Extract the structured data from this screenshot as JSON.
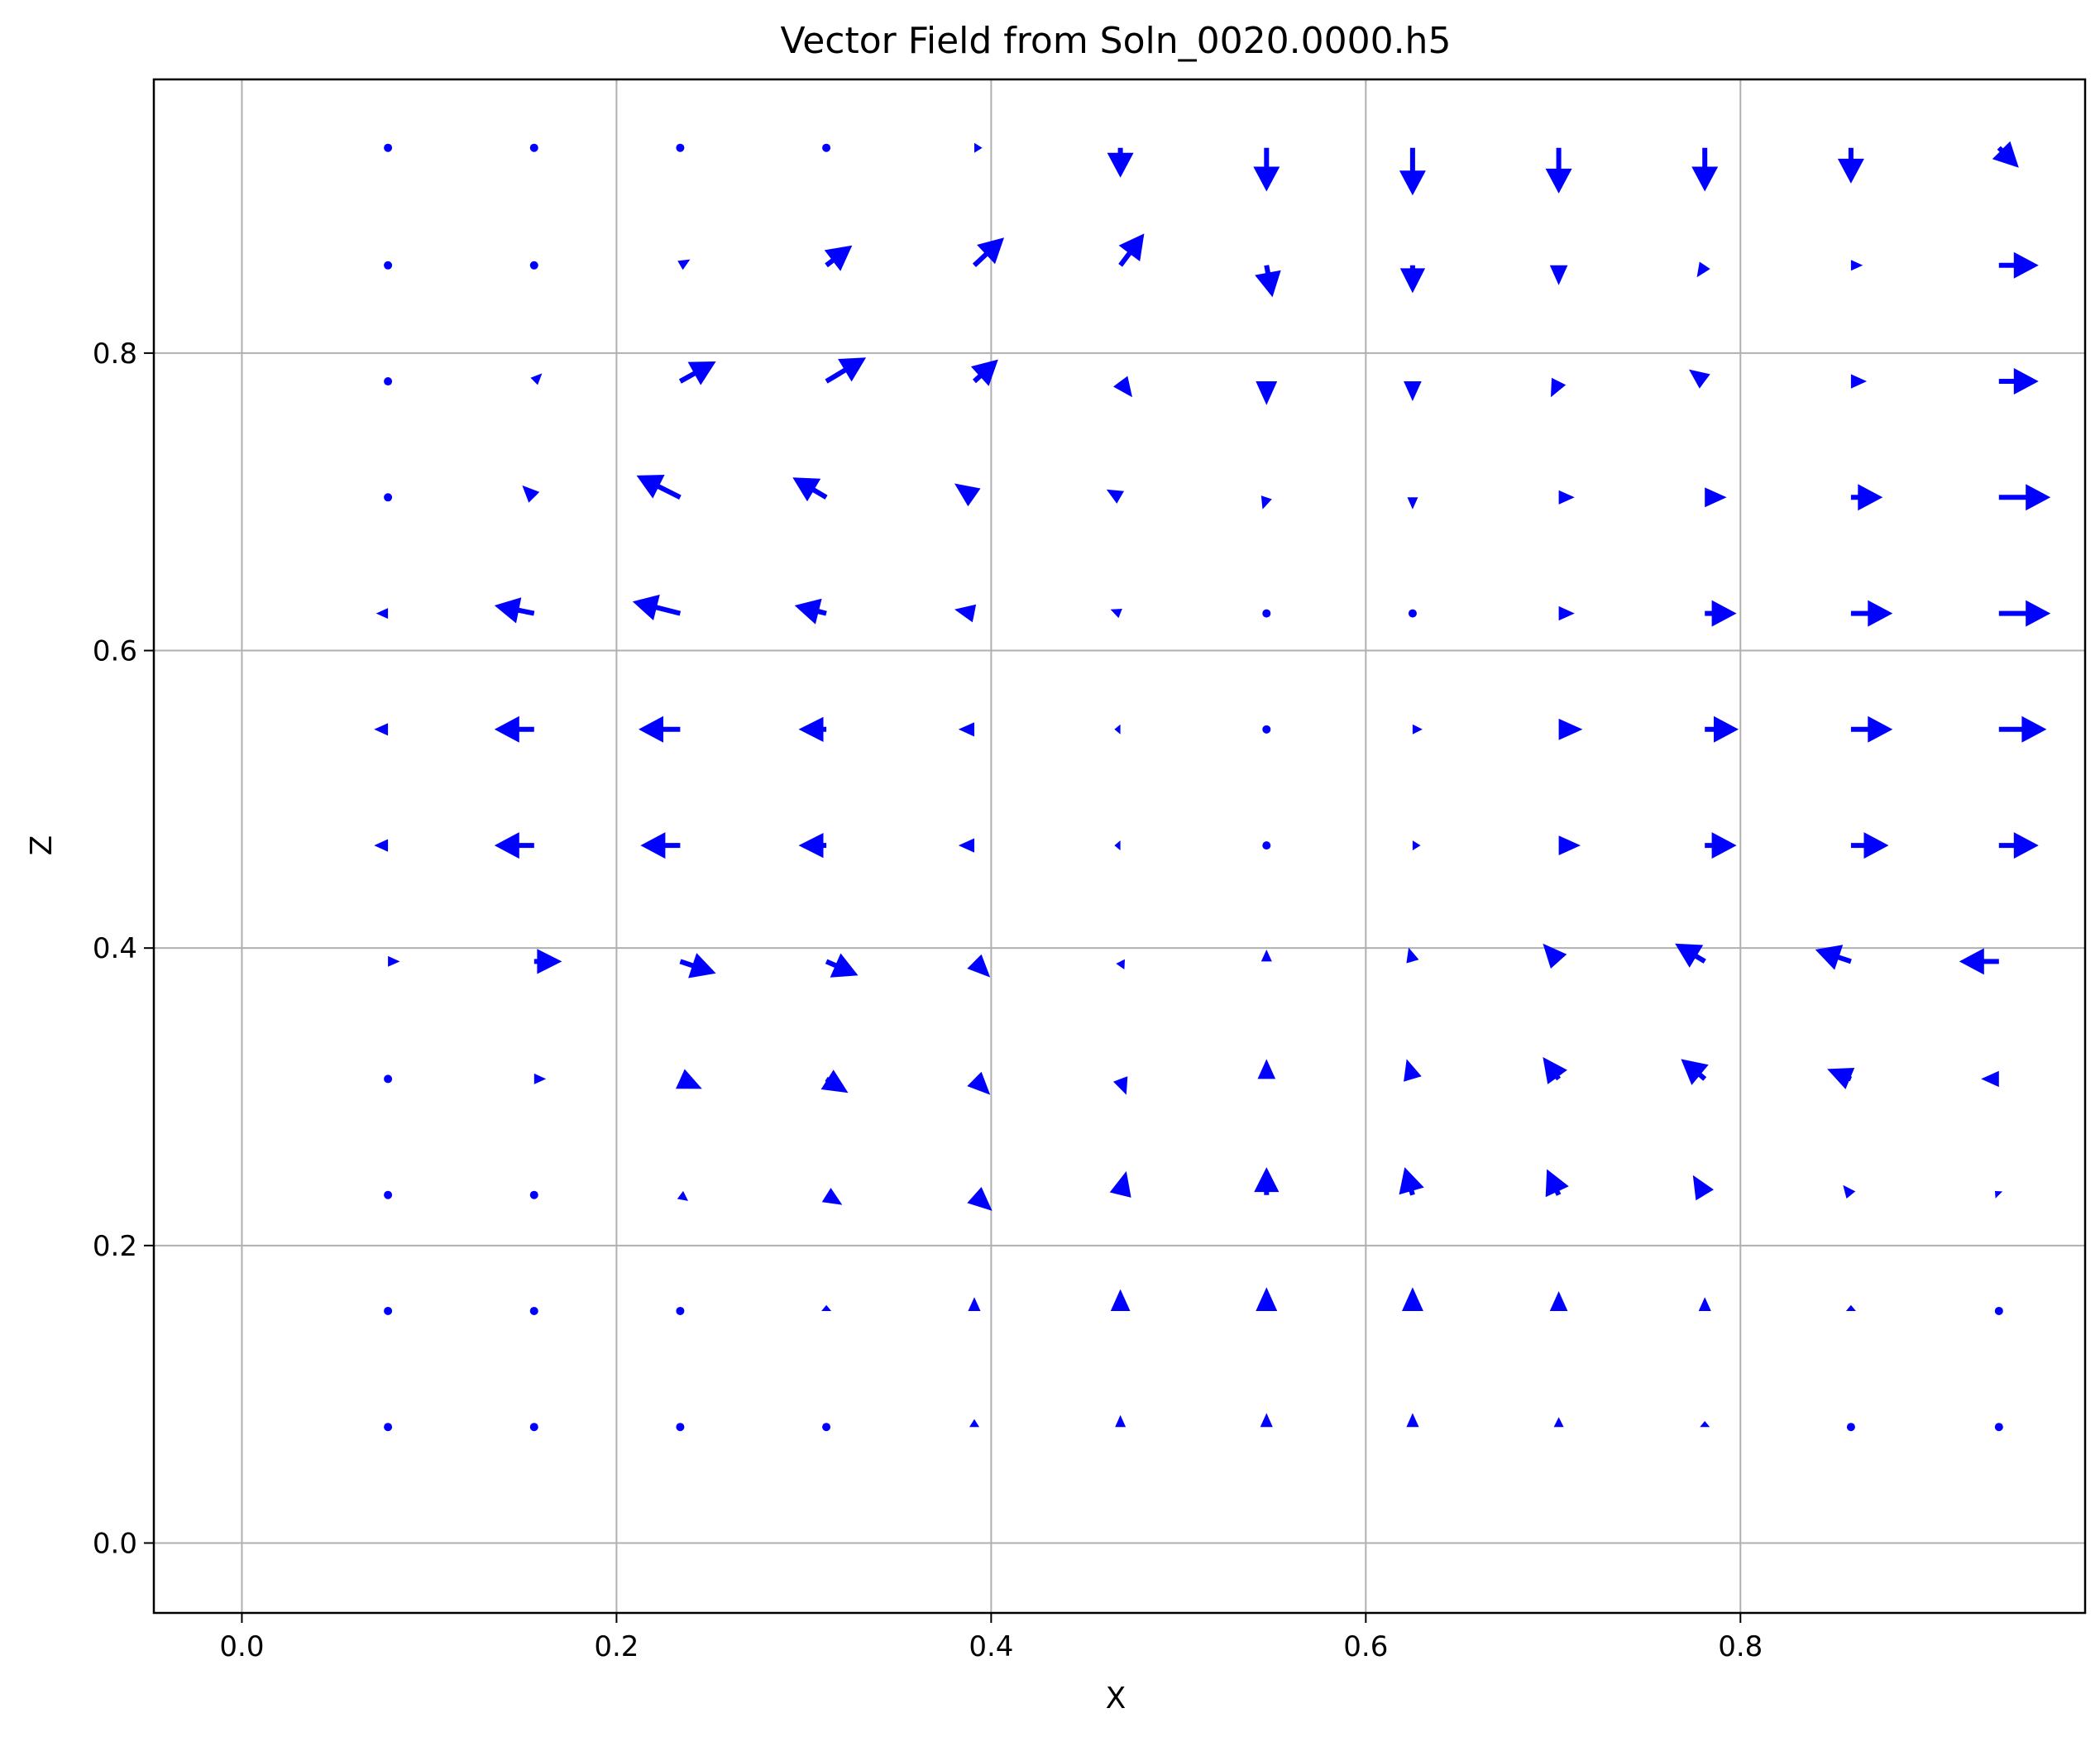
{
  "chart_data": {
    "type": "quiver",
    "title": "Vector Field from Soln_0020.0000.h5",
    "xlabel": "X",
    "ylabel": "Z",
    "xlim": [
      -0.047,
      0.984
    ],
    "ylim": [
      -0.047,
      0.984
    ],
    "xticks": [
      0.0,
      0.2,
      0.4,
      0.6,
      0.8
    ],
    "yticks": [
      0.0,
      0.2,
      0.4,
      0.6,
      0.8
    ],
    "xtick_labels": [
      "0.0",
      "0.2",
      "0.4",
      "0.6",
      "0.8"
    ],
    "ytick_labels": [
      "0.0",
      "0.2",
      "0.4",
      "0.6",
      "0.8"
    ],
    "grid": true,
    "arrow_color": "#0000ff",
    "grid_color": "#b0b0b0",
    "x": [
      0.078,
      0.156,
      0.234,
      0.312,
      0.391,
      0.469,
      0.547,
      0.625,
      0.703,
      0.781,
      0.859,
      0.938
    ],
    "z": [
      0.078,
      0.156,
      0.234,
      0.312,
      0.391,
      0.469,
      0.547,
      0.625,
      0.703,
      0.781,
      0.859,
      0.938
    ],
    "u": [
      [
        0.0,
        0.0,
        0.0,
        0.0,
        0.0,
        0.0,
        0.0,
        0.0,
        0.0,
        0.0,
        0.0,
        0.0
      ],
      [
        0.0,
        0.0,
        0.0,
        0.0,
        0.0,
        0.0,
        0.0,
        0.0,
        0.0,
        0.0,
        0.0,
        0.0
      ],
      [
        0.0,
        0.0,
        0.004,
        0.008,
        0.009,
        0.003,
        0.0,
        -0.004,
        -0.006,
        -0.006,
        -0.004,
        -0.002
      ],
      [
        0.0,
        0.006,
        0.011,
        0.011,
        0.008,
        0.003,
        0.0,
        -0.003,
        -0.008,
        -0.012,
        -0.012,
        -0.009
      ],
      [
        0.006,
        0.014,
        0.018,
        0.016,
        0.008,
        0.002,
        0.0,
        -0.002,
        -0.008,
        -0.015,
        -0.018,
        -0.02
      ],
      [
        -0.007,
        -0.02,
        -0.02,
        -0.014,
        -0.008,
        -0.003,
        0.0,
        0.004,
        0.011,
        0.016,
        0.019,
        0.02
      ],
      [
        -0.007,
        -0.02,
        -0.021,
        -0.014,
        -0.008,
        -0.003,
        0.0,
        0.005,
        0.012,
        0.017,
        0.021,
        0.024
      ],
      [
        -0.006,
        -0.02,
        -0.024,
        -0.016,
        -0.01,
        -0.005,
        0.0,
        0.0,
        0.008,
        0.016,
        0.021,
        0.026
      ],
      [
        0.0,
        -0.006,
        -0.022,
        -0.017,
        -0.01,
        -0.007,
        -0.002,
        0.0,
        0.008,
        0.011,
        0.016,
        0.026
      ],
      [
        0.0,
        0.004,
        0.018,
        0.02,
        0.012,
        0.006,
        0.0,
        0.0,
        -0.004,
        -0.008,
        0.008,
        0.02
      ],
      [
        0.0,
        0.0,
        0.005,
        0.013,
        0.015,
        0.012,
        0.003,
        0.0,
        0.0,
        -0.004,
        0.006,
        0.02
      ],
      [
        0.0,
        0.0,
        0.0,
        0.0,
        0.004,
        0.0,
        0.0,
        0.0,
        0.0,
        0.0,
        0.0,
        0.01
      ]
    ],
    "w": [
      [
        0.0,
        0.0,
        0.0,
        0.0,
        0.004,
        0.006,
        0.007,
        0.007,
        0.005,
        0.003,
        0.0,
        0.0
      ],
      [
        0.0,
        0.0,
        0.0,
        0.003,
        0.007,
        0.011,
        0.012,
        0.012,
        0.01,
        0.007,
        0.003,
        0.0
      ],
      [
        0.0,
        0.0,
        -0.003,
        -0.005,
        -0.008,
        0.012,
        0.014,
        0.014,
        0.013,
        0.01,
        0.005,
        0.002
      ],
      [
        0.0,
        0.0,
        -0.005,
        -0.007,
        -0.008,
        -0.008,
        0.01,
        0.01,
        0.011,
        0.01,
        0.005,
        0.0
      ],
      [
        0.0,
        0.0,
        -0.006,
        -0.007,
        -0.008,
        -0.004,
        0.006,
        0.007,
        0.009,
        0.009,
        0.006,
        0.0
      ],
      [
        0.0,
        0.0,
        0.0,
        0.0,
        0.0,
        0.0,
        0.0,
        0.0,
        0.0,
        0.0,
        0.0,
        0.0
      ],
      [
        0.0,
        0.0,
        0.0,
        0.0,
        0.0,
        0.0,
        0.0,
        0.0,
        0.0,
        0.0,
        0.0,
        0.0
      ],
      [
        0.0,
        0.004,
        0.006,
        0.004,
        0.002,
        0.002,
        0.0,
        0.0,
        0.0,
        0.0,
        0.0,
        0.0
      ],
      [
        0.0,
        0.006,
        0.011,
        0.01,
        0.007,
        0.004,
        -0.006,
        -0.006,
        0.0,
        0.0,
        0.0,
        0.0
      ],
      [
        0.0,
        0.004,
        0.01,
        0.012,
        0.011,
        -0.008,
        -0.012,
        -0.01,
        -0.008,
        0.006,
        0.0,
        0.0
      ],
      [
        0.0,
        0.0,
        0.003,
        0.01,
        0.014,
        0.016,
        -0.016,
        -0.014,
        -0.01,
        -0.006,
        0.0,
        0.0
      ],
      [
        0.0,
        0.0,
        0.0,
        0.0,
        0.0,
        -0.015,
        -0.022,
        -0.024,
        -0.023,
        -0.022,
        -0.018,
        -0.01
      ]
    ]
  }
}
